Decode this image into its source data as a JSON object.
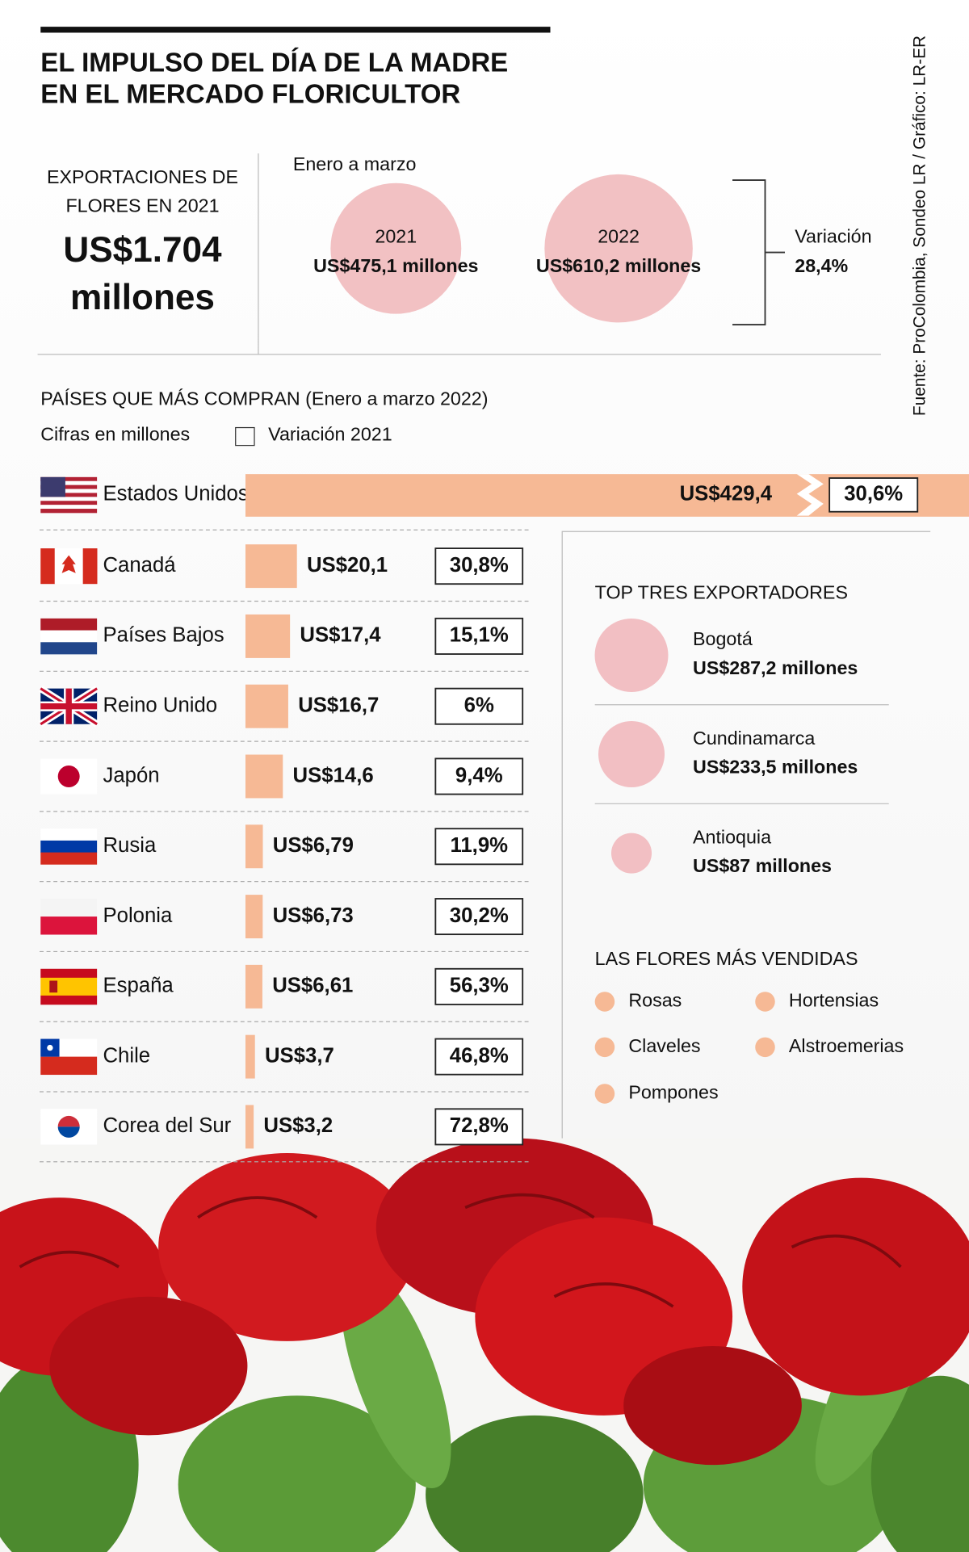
{
  "header": {
    "title_lines": [
      "EL IMPULSO DEL DÍA DE LA MADRE",
      "EN EL MERCADO FLORICULTOR"
    ],
    "source": "Fuente: ProColombia, Sondeo LR / Gráfico: LR-ER"
  },
  "exports": {
    "label_lines": [
      "EXPORTACIONES DE",
      "FLORES EN 2021"
    ],
    "value_lines": [
      "US$1.704",
      "millones"
    ]
  },
  "q1": {
    "period": "Enero a marzo",
    "items": [
      {
        "year": "2021",
        "label": "US$475,1 millones",
        "value": 475.1
      },
      {
        "year": "2022",
        "label": "US$610,2 millones",
        "value": 610.2
      }
    ],
    "variation_title": "Variación",
    "variation": "28,4%"
  },
  "countries": {
    "title": "PAÍSES QUE MÁS COMPRAN (Enero a marzo 2022)",
    "units": "Cifras en millones",
    "legend": "Variación 2021",
    "rows": [
      {
        "name": "Estados Unidos",
        "value": 429.4,
        "label": "US$429,4",
        "variation": "30,6%"
      },
      {
        "name": "Canadá",
        "value": 20.1,
        "label": "US$20,1",
        "variation": "30,8%"
      },
      {
        "name": "Países Bajos",
        "value": 17.4,
        "label": "US$17,4",
        "variation": "15,1%"
      },
      {
        "name": "Reino Unido",
        "value": 16.7,
        "label": "US$16,7",
        "variation": "6%"
      },
      {
        "name": "Japón",
        "value": 14.6,
        "label": "US$14,6",
        "variation": "9,4%"
      },
      {
        "name": "Rusia",
        "value": 6.79,
        "label": "US$6,79",
        "variation": "11,9%"
      },
      {
        "name": "Polonia",
        "value": 6.73,
        "label": "US$6,73",
        "variation": "30,2%"
      },
      {
        "name": "España",
        "value": 6.61,
        "label": "US$6,61",
        "variation": "56,3%"
      },
      {
        "name": "Chile",
        "value": 3.7,
        "label": "US$3,7",
        "variation": "46,8%"
      },
      {
        "name": "Corea del Sur",
        "value": 3.2,
        "label": "US$3,2",
        "variation": "72,8%"
      }
    ]
  },
  "top_exporters": {
    "title": "TOP TRES EXPORTADORES",
    "items": [
      {
        "name": "Bogotá",
        "label": "US$287,2 millones",
        "value": 287.2
      },
      {
        "name": "Cundinamarca",
        "label": "US$233,5 millones",
        "value": 233.5
      },
      {
        "name": "Antioquia",
        "label": "US$87 millones",
        "value": 87
      }
    ]
  },
  "flowers": {
    "title": "LAS FLORES MÁS VENDIDAS",
    "items": [
      "Rosas",
      "Hortensias",
      "Claveles",
      "Alstroemerias",
      "Pompones"
    ]
  }
}
